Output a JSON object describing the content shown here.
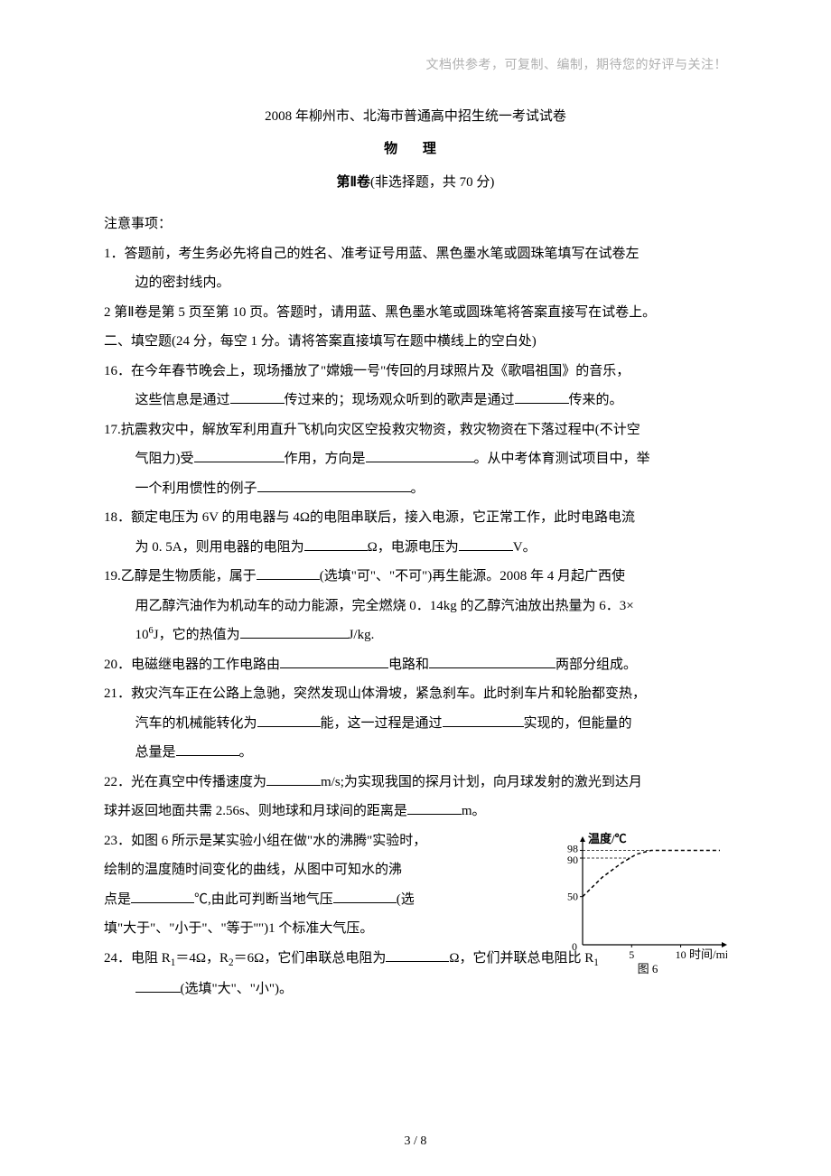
{
  "colors": {
    "text": "#000000",
    "bg": "#ffffff",
    "muted": "#b0b0b0",
    "chart_line": "#000000"
  },
  "typography": {
    "body_fontsize": 15,
    "body_family": "SimSun",
    "line_height": 1.9
  },
  "header_note": "文档供参考，可复制、编制，期待您的好评与关注！",
  "title": "2008 年柳州市、北海市普通高中招生统一考试试卷",
  "subject": "物   理",
  "part_label_bold": "第Ⅱ卷",
  "part_label_rest": "(非选择题，共 70 分)",
  "instructions_heading": "注意事项：",
  "instruction1_a": "1．答题前，考生务必先将自己的姓名、准考证号用蓝、黑色墨水笔或圆珠笔填写在试卷左",
  "instruction1_b": "边的密封线内。",
  "instruction2": "2 第Ⅱ卷是第 5 页至第 10 页。答题时，请用蓝、黑色墨水笔或圆珠笔将答案直接写在试卷上。",
  "section2": "二、填空题(24 分，每空 1 分。请将答案直接填写在题中横线上的空白处)",
  "q16_a": "16．在今年春节晚会上，现场播放了\"嫦娥一号\"传回的月球照片及《歌唱祖国》的音乐，",
  "q16_b1": "这些信息是通过",
  "q16_b2": "传过来的；现场观众听到的歌声是通过",
  "q16_b3": "传来的。",
  "q17_a": "17.抗震救灾中，解放军利用直升飞机向灾区空投救灾物资，救灾物资在下落过程中(不计空",
  "q17_b1": "气阻力)受",
  "q17_b2": "作用，方向是",
  "q17_b3": "。从中考体育测试项目中，举",
  "q17_c1": "一个利用惯性的例子",
  "q17_c2": "。",
  "q18_a": "18．额定电压为 6V 的用电器与 4Ω的电阻串联后，接入电源，它正常工作，此时电路电流",
  "q18_b1": "为 0. 5A，则用电器的电阻为",
  "q18_b2": "Ω，电源电压为",
  "q18_b3": "V。",
  "q19_a1": "19.乙醇是生物质能，属于",
  "q19_a2": "(选填\"可\"、\"不可\")再生能源。2008 年 4 月起广西使",
  "q19_b": "用乙醇汽油作为机动车的动力能源，完全燃烧 0．14kg 的乙醇汽油放出热量为 6．3×",
  "q19_c1_pre": "10",
  "q19_c1_sup": "6",
  "q19_c1_post": "J，它的热值为",
  "q19_c2": "J/kg.",
  "q20_1": "20．电磁继电器的工作电路由",
  "q20_2": "电路和",
  "q20_3": "两部分组成。",
  "q21_a": "21．救灾汽车正在公路上急驰，突然发现山体滑坡，紧急刹车。此时刹车片和轮胎都变热，",
  "q21_b1": "汽车的机械能转化为",
  "q21_b2": "能，这一过程是通过",
  "q21_b3": "实现的，但能量的",
  "q21_c1": "总量是",
  "q21_c2": "。",
  "q22_a1": "22．光在真空中传播速度为",
  "q22_a2": "m/s;为实现我国的探月计划，向月球发射的激光到达月",
  "q22_b1": "球并返回地面共需 2.56s、则地球和月球间的距离是",
  "q22_b2": "m。",
  "q23_a": "23．如图 6 所示是某实验小组在做\"水的沸腾\"实验时，",
  "q23_b": "绘制的温度随时间变化的曲线，从图中可知水的沸",
  "q23_c1": "点是",
  "q23_c2": "℃,由此可判断当地气压",
  "q23_c3": "(选",
  "q23_d": "填\"大于\"、\"小于\"、\"等于''\")1 个标准大气压。",
  "q24_a1_pre": "24．电阻 R",
  "q24_a1_sub1": "1",
  "q24_a1_mid": "＝4Ω，R",
  "q24_a1_sub2": "2",
  "q24_a1_post": "＝6Ω，它们串联总电阻为",
  "q24_a2_pre": "Ω，它们并联总电阻比 R",
  "q24_a2_sub": "1",
  "q24_b2": "(选填\"大\"、\"小\")。",
  "footer": "3 / 8",
  "chart": {
    "type": "line",
    "title": "图 6",
    "y_label": "温度/℃",
    "x_label": "时间/min",
    "xlim": [
      0,
      14
    ],
    "ylim": [
      0,
      105
    ],
    "y_ticks": [
      0,
      50,
      90,
      98
    ],
    "x_ticks": [
      5,
      10
    ],
    "x_origin_label": "0",
    "x_tick_labels": [
      "5",
      "10"
    ],
    "y_tick_labels": [
      "50",
      "90",
      "98"
    ],
    "data_x": [
      0,
      2,
      4,
      5.5,
      7,
      14
    ],
    "data_y": [
      50,
      70,
      85,
      94,
      98,
      98
    ],
    "line_color": "#000000",
    "line_width": 1.5,
    "line_dash": "4,3",
    "axis_color": "#000000",
    "axis_width": 1.2,
    "label_fontsize": 13,
    "tick_fontsize": 12,
    "background": "#ffffff"
  }
}
